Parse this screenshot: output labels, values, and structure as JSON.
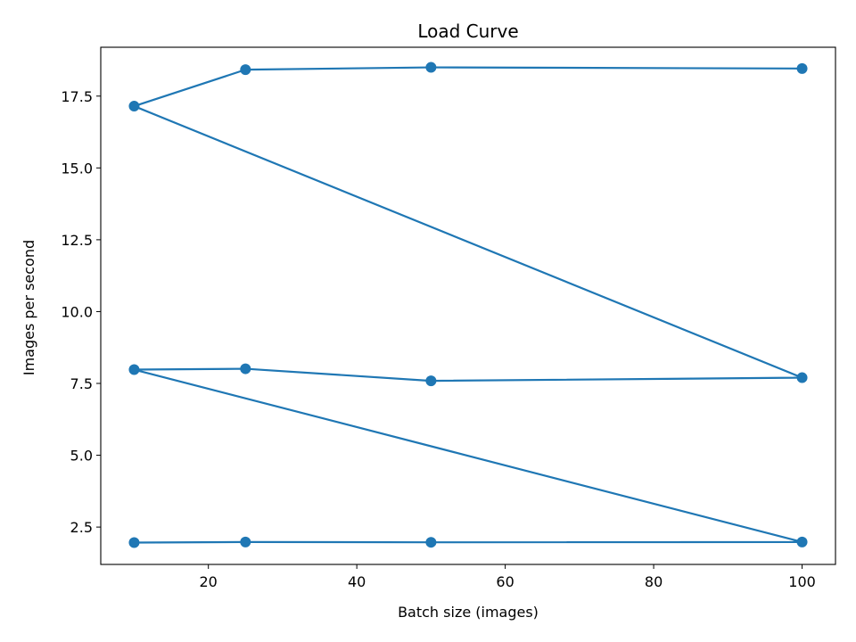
{
  "chart_data": {
    "type": "line",
    "title": "Load Curve",
    "xlabel": "Batch size (images)",
    "ylabel": "Images per second",
    "xlim": [
      5.5,
      104.5
    ],
    "ylim": [
      1.2,
      19.2
    ],
    "xticks": [
      20,
      40,
      60,
      80,
      100
    ],
    "yticks": [
      2.5,
      5.0,
      7.5,
      10.0,
      12.5,
      15.0,
      17.5
    ],
    "ytick_labels": [
      "2.5",
      "5.0",
      "7.5",
      "10.0",
      "12.5",
      "15.0",
      "17.5"
    ],
    "xtick_labels": [
      "20",
      "40",
      "60",
      "80",
      "100"
    ],
    "grid": false,
    "series": [
      {
        "color": "#1f77b4",
        "marker": "circle",
        "x": [
          10,
          25,
          50,
          100,
          10,
          25,
          50,
          100,
          10,
          25,
          50,
          100
        ],
        "y": [
          1.96,
          1.98,
          1.97,
          1.98,
          7.98,
          8.01,
          7.59,
          7.7,
          17.15,
          18.42,
          18.5,
          18.46
        ]
      }
    ]
  }
}
